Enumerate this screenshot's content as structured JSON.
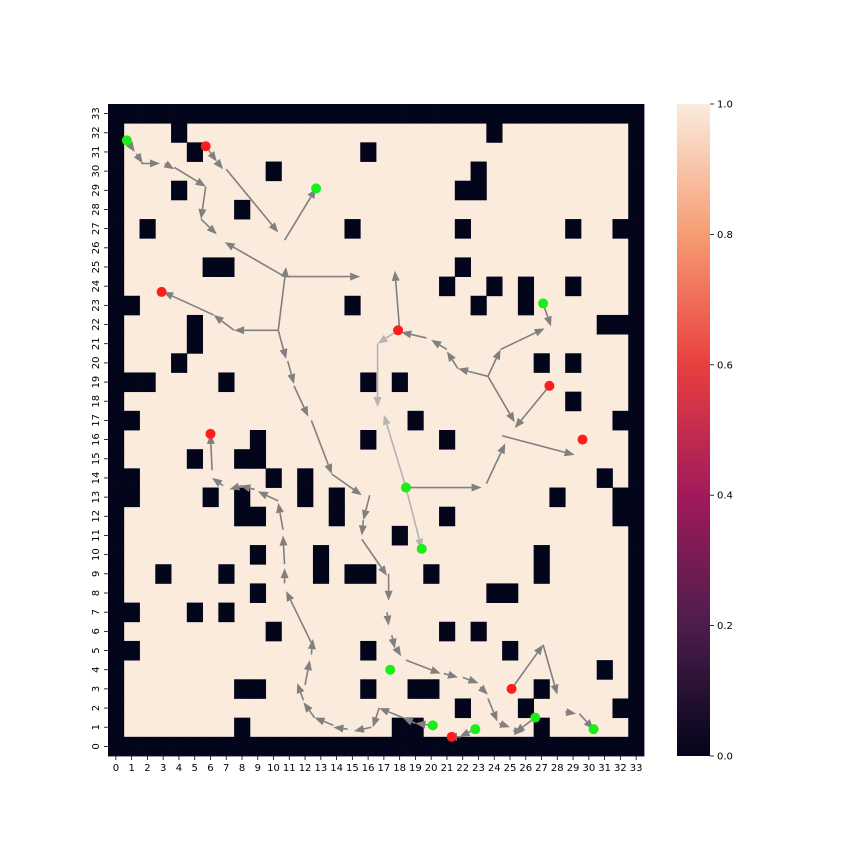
{
  "chart_data": {
    "type": "heatmap",
    "title": "",
    "xlabel": "",
    "ylabel": "",
    "grid_size": [
      34,
      34
    ],
    "x_ticks": [
      "0",
      "1",
      "2",
      "3",
      "4",
      "5",
      "6",
      "7",
      "8",
      "9",
      "10",
      "11",
      "12",
      "13",
      "14",
      "15",
      "16",
      "17",
      "18",
      "19",
      "20",
      "21",
      "22",
      "23",
      "24",
      "25",
      "26",
      "27",
      "28",
      "29",
      "30",
      "31",
      "32",
      "33"
    ],
    "y_ticks": [
      "0",
      "1",
      "2",
      "3",
      "4",
      "5",
      "6",
      "7",
      "8",
      "9",
      "10",
      "11",
      "12",
      "13",
      "14",
      "15",
      "16",
      "17",
      "18",
      "19",
      "20",
      "21",
      "22",
      "23",
      "24",
      "25",
      "26",
      "27",
      "28",
      "29",
      "30",
      "31",
      "32",
      "33"
    ],
    "colorbar": {
      "range": [
        0.0,
        1.0
      ],
      "ticks": [
        "0.0",
        "0.2",
        "0.4",
        "0.6",
        "0.8",
        "1.0"
      ]
    },
    "colors": {
      "free": "#faebdd",
      "obstacle": "#03051a",
      "start_marker": "#ff1c1c",
      "goal_marker": "#19ee19",
      "arrow": "#808080",
      "arrow_light": "#b4b4b4",
      "colormap": [
        "#03051a",
        "#4c1d4b",
        "#a11a5b",
        "#e83f3f",
        "#f69c73",
        "#faebdd"
      ]
    },
    "obstacles": [
      [
        4,
        32
      ],
      [
        24,
        32
      ],
      [
        5,
        31
      ],
      [
        16,
        31
      ],
      [
        10,
        30
      ],
      [
        23,
        30
      ],
      [
        4,
        29
      ],
      [
        22,
        29
      ],
      [
        23,
        29
      ],
      [
        8,
        28
      ],
      [
        2,
        27
      ],
      [
        15,
        27
      ],
      [
        22,
        27
      ],
      [
        29,
        27
      ],
      [
        32,
        27
      ],
      [
        6,
        25
      ],
      [
        7,
        25
      ],
      [
        22,
        25
      ],
      [
        21,
        24
      ],
      [
        24,
        24
      ],
      [
        26,
        24
      ],
      [
        29,
        24
      ],
      [
        1,
        23
      ],
      [
        15,
        23
      ],
      [
        23,
        23
      ],
      [
        26,
        23
      ],
      [
        5,
        22
      ],
      [
        31,
        22
      ],
      [
        32,
        22
      ],
      [
        5,
        21
      ],
      [
        4,
        20
      ],
      [
        27,
        20
      ],
      [
        29,
        20
      ],
      [
        1,
        19
      ],
      [
        2,
        19
      ],
      [
        7,
        19
      ],
      [
        16,
        19
      ],
      [
        18,
        19
      ],
      [
        29,
        18
      ],
      [
        1,
        17
      ],
      [
        19,
        17
      ],
      [
        32,
        17
      ],
      [
        9,
        16
      ],
      [
        16,
        16
      ],
      [
        21,
        16
      ],
      [
        5,
        15
      ],
      [
        8,
        15
      ],
      [
        9,
        15
      ],
      [
        1,
        14
      ],
      [
        10,
        14
      ],
      [
        12,
        14
      ],
      [
        31,
        14
      ],
      [
        1,
        13
      ],
      [
        6,
        13
      ],
      [
        8,
        13
      ],
      [
        12,
        13
      ],
      [
        14,
        13
      ],
      [
        28,
        13
      ],
      [
        32,
        13
      ],
      [
        8,
        12
      ],
      [
        9,
        12
      ],
      [
        14,
        12
      ],
      [
        21,
        12
      ],
      [
        32,
        12
      ],
      [
        18,
        11
      ],
      [
        9,
        10
      ],
      [
        13,
        10
      ],
      [
        27,
        10
      ],
      [
        3,
        9
      ],
      [
        7,
        9
      ],
      [
        13,
        9
      ],
      [
        15,
        9
      ],
      [
        16,
        9
      ],
      [
        20,
        9
      ],
      [
        27,
        9
      ],
      [
        9,
        8
      ],
      [
        24,
        8
      ],
      [
        25,
        8
      ],
      [
        1,
        7
      ],
      [
        5,
        7
      ],
      [
        7,
        7
      ],
      [
        10,
        6
      ],
      [
        21,
        6
      ],
      [
        23,
        6
      ],
      [
        1,
        5
      ],
      [
        16,
        5
      ],
      [
        25,
        5
      ],
      [
        31,
        4
      ],
      [
        8,
        3
      ],
      [
        9,
        3
      ],
      [
        16,
        3
      ],
      [
        19,
        3
      ],
      [
        20,
        3
      ],
      [
        27,
        3
      ],
      [
        22,
        2
      ],
      [
        26,
        2
      ],
      [
        32,
        2
      ],
      [
        8,
        1
      ],
      [
        18,
        1
      ],
      [
        19,
        1
      ],
      [
        27,
        1
      ]
    ],
    "start_points": [
      [
        6.2,
        31.8
      ],
      [
        3.4,
        24.2
      ],
      [
        18.4,
        22.2
      ],
      [
        6.5,
        16.8
      ],
      [
        28.0,
        19.3
      ],
      [
        30.1,
        16.5
      ],
      [
        25.6,
        3.5
      ],
      [
        21.8,
        1.0
      ]
    ],
    "goal_points": [
      [
        1.2,
        32.1
      ],
      [
        13.2,
        29.6
      ],
      [
        27.6,
        23.6
      ],
      [
        18.9,
        14.0
      ],
      [
        19.9,
        10.8
      ],
      [
        17.9,
        4.5
      ],
      [
        20.6,
        1.6
      ],
      [
        23.3,
        1.4
      ],
      [
        27.1,
        2.0
      ],
      [
        30.8,
        1.4
      ]
    ],
    "arrows": [
      [
        1.2,
        32.1,
        1.7,
        31.5
      ],
      [
        1.8,
        31.4,
        2.2,
        30.9
      ],
      [
        2.1,
        30.9,
        3.3,
        30.9
      ],
      [
        3.6,
        30.9,
        4.2,
        30.6
      ],
      [
        4.2,
        30.7,
        6.2,
        29.7
      ],
      [
        6.2,
        29.7,
        5.9,
        28.0
      ],
      [
        5.9,
        28.0,
        6.9,
        27.2
      ],
      [
        6.2,
        31.8,
        6.9,
        31.0
      ],
      [
        6.9,
        31.0,
        7.3,
        30.6
      ],
      [
        7.5,
        30.6,
        10.8,
        27.3
      ],
      [
        11.2,
        26.9,
        13.2,
        29.6
      ],
      [
        11.2,
        25.0,
        7.4,
        26.8
      ],
      [
        11.2,
        25.0,
        16.0,
        25.0
      ],
      [
        10.8,
        22.2,
        11.3,
        25.5
      ],
      [
        10.8,
        22.2,
        8.0,
        22.2
      ],
      [
        8.0,
        22.2,
        6.7,
        23.0
      ],
      [
        6.7,
        23.0,
        3.5,
        24.2
      ],
      [
        10.8,
        22.2,
        11.3,
        20.7
      ],
      [
        11.4,
        20.6,
        11.8,
        19.4
      ],
      [
        11.8,
        19.3,
        12.7,
        17.7
      ],
      [
        12.9,
        17.5,
        14.2,
        14.7
      ],
      [
        14.2,
        14.7,
        16.1,
        13.6
      ],
      [
        16.6,
        13.6,
        16.2,
        12.3
      ],
      [
        16.2,
        12.3,
        16.1,
        11.5
      ],
      [
        16.1,
        11.3,
        17.7,
        9.4
      ],
      [
        17.8,
        9.5,
        17.8,
        8.1
      ],
      [
        17.7,
        7.5,
        17.8,
        6.8
      ],
      [
        18.0,
        6.3,
        18.2,
        5.6
      ],
      [
        18.3,
        5.6,
        18.6,
        5.2
      ],
      [
        18.9,
        5.0,
        21.1,
        4.3
      ],
      [
        21.3,
        4.3,
        22.2,
        4.1
      ],
      [
        22.5,
        4.1,
        23.5,
        3.8
      ],
      [
        23.6,
        3.6,
        24.1,
        3.2
      ],
      [
        24.1,
        3.0,
        24.7,
        1.8
      ],
      [
        24.8,
        1.7,
        25.5,
        1.5
      ],
      [
        25.7,
        1.3,
        26.4,
        1.3
      ],
      [
        25.6,
        3.5,
        27.6,
        5.8
      ],
      [
        27.6,
        5.8,
        28.5,
        3.2
      ],
      [
        29.0,
        2.3,
        29.7,
        2.2
      ],
      [
        29.9,
        2.2,
        30.8,
        1.4
      ],
      [
        27.1,
        2.0,
        25.8,
        1.2
      ],
      [
        23.3,
        1.4,
        22.3,
        1.0
      ],
      [
        22.4,
        1.0,
        21.5,
        1.0
      ],
      [
        20.6,
        1.6,
        19.5,
        1.7
      ],
      [
        19.5,
        1.7,
        18.7,
        2.0
      ],
      [
        18.7,
        2.0,
        17.2,
        2.5
      ],
      [
        17.2,
        2.5,
        16.8,
        1.5
      ],
      [
        16.7,
        1.5,
        15.6,
        1.3
      ],
      [
        15.2,
        1.4,
        14.3,
        1.5
      ],
      [
        14.3,
        1.6,
        13.1,
        2.0
      ],
      [
        13.1,
        2.0,
        12.4,
        2.8
      ],
      [
        12.4,
        2.9,
        12.0,
        3.8
      ],
      [
        12.5,
        3.7,
        12.8,
        5.0
      ],
      [
        12.9,
        5.3,
        13.0,
        6.1
      ],
      [
        12.9,
        5.9,
        11.3,
        8.6
      ],
      [
        11.2,
        9.0,
        11.2,
        9.8
      ],
      [
        11.2,
        10.0,
        11.1,
        11.5
      ],
      [
        11.1,
        11.8,
        10.8,
        13.2
      ],
      [
        10.8,
        13.3,
        9.5,
        13.8
      ],
      [
        9.3,
        13.9,
        8.4,
        14.1
      ],
      [
        8.5,
        14.1,
        7.7,
        13.9
      ],
      [
        7.3,
        14.1,
        6.6,
        14.5
      ],
      [
        6.6,
        14.9,
        6.5,
        16.8
      ],
      [
        18.8,
        14.0,
        23.7,
        14.0
      ],
      [
        24.0,
        14.2,
        25.2,
        16.3
      ],
      [
        25.0,
        16.7,
        29.6,
        15.7
      ],
      [
        28.0,
        19.3,
        25.8,
        17.1
      ],
      [
        24.1,
        19.8,
        25.8,
        17.4
      ],
      [
        24.1,
        19.8,
        24.9,
        21.2
      ],
      [
        24.9,
        21.2,
        27.7,
        22.3
      ],
      [
        27.6,
        23.6,
        28.1,
        22.4
      ],
      [
        24.1,
        19.8,
        22.2,
        20.2
      ],
      [
        22.2,
        20.2,
        21.5,
        21.1
      ],
      [
        21.5,
        21.2,
        20.5,
        21.7
      ],
      [
        20.2,
        21.8,
        18.6,
        22.1
      ],
      [
        18.5,
        22.2,
        18.2,
        25.3
      ]
    ],
    "light_arrows": [
      [
        18.4,
        22.2,
        17.1,
        21.5
      ],
      [
        17.1,
        21.5,
        17.1,
        18.2
      ],
      [
        18.9,
        14.0,
        17.5,
        17.8
      ],
      [
        18.9,
        14.0,
        19.9,
        10.8
      ]
    ]
  }
}
